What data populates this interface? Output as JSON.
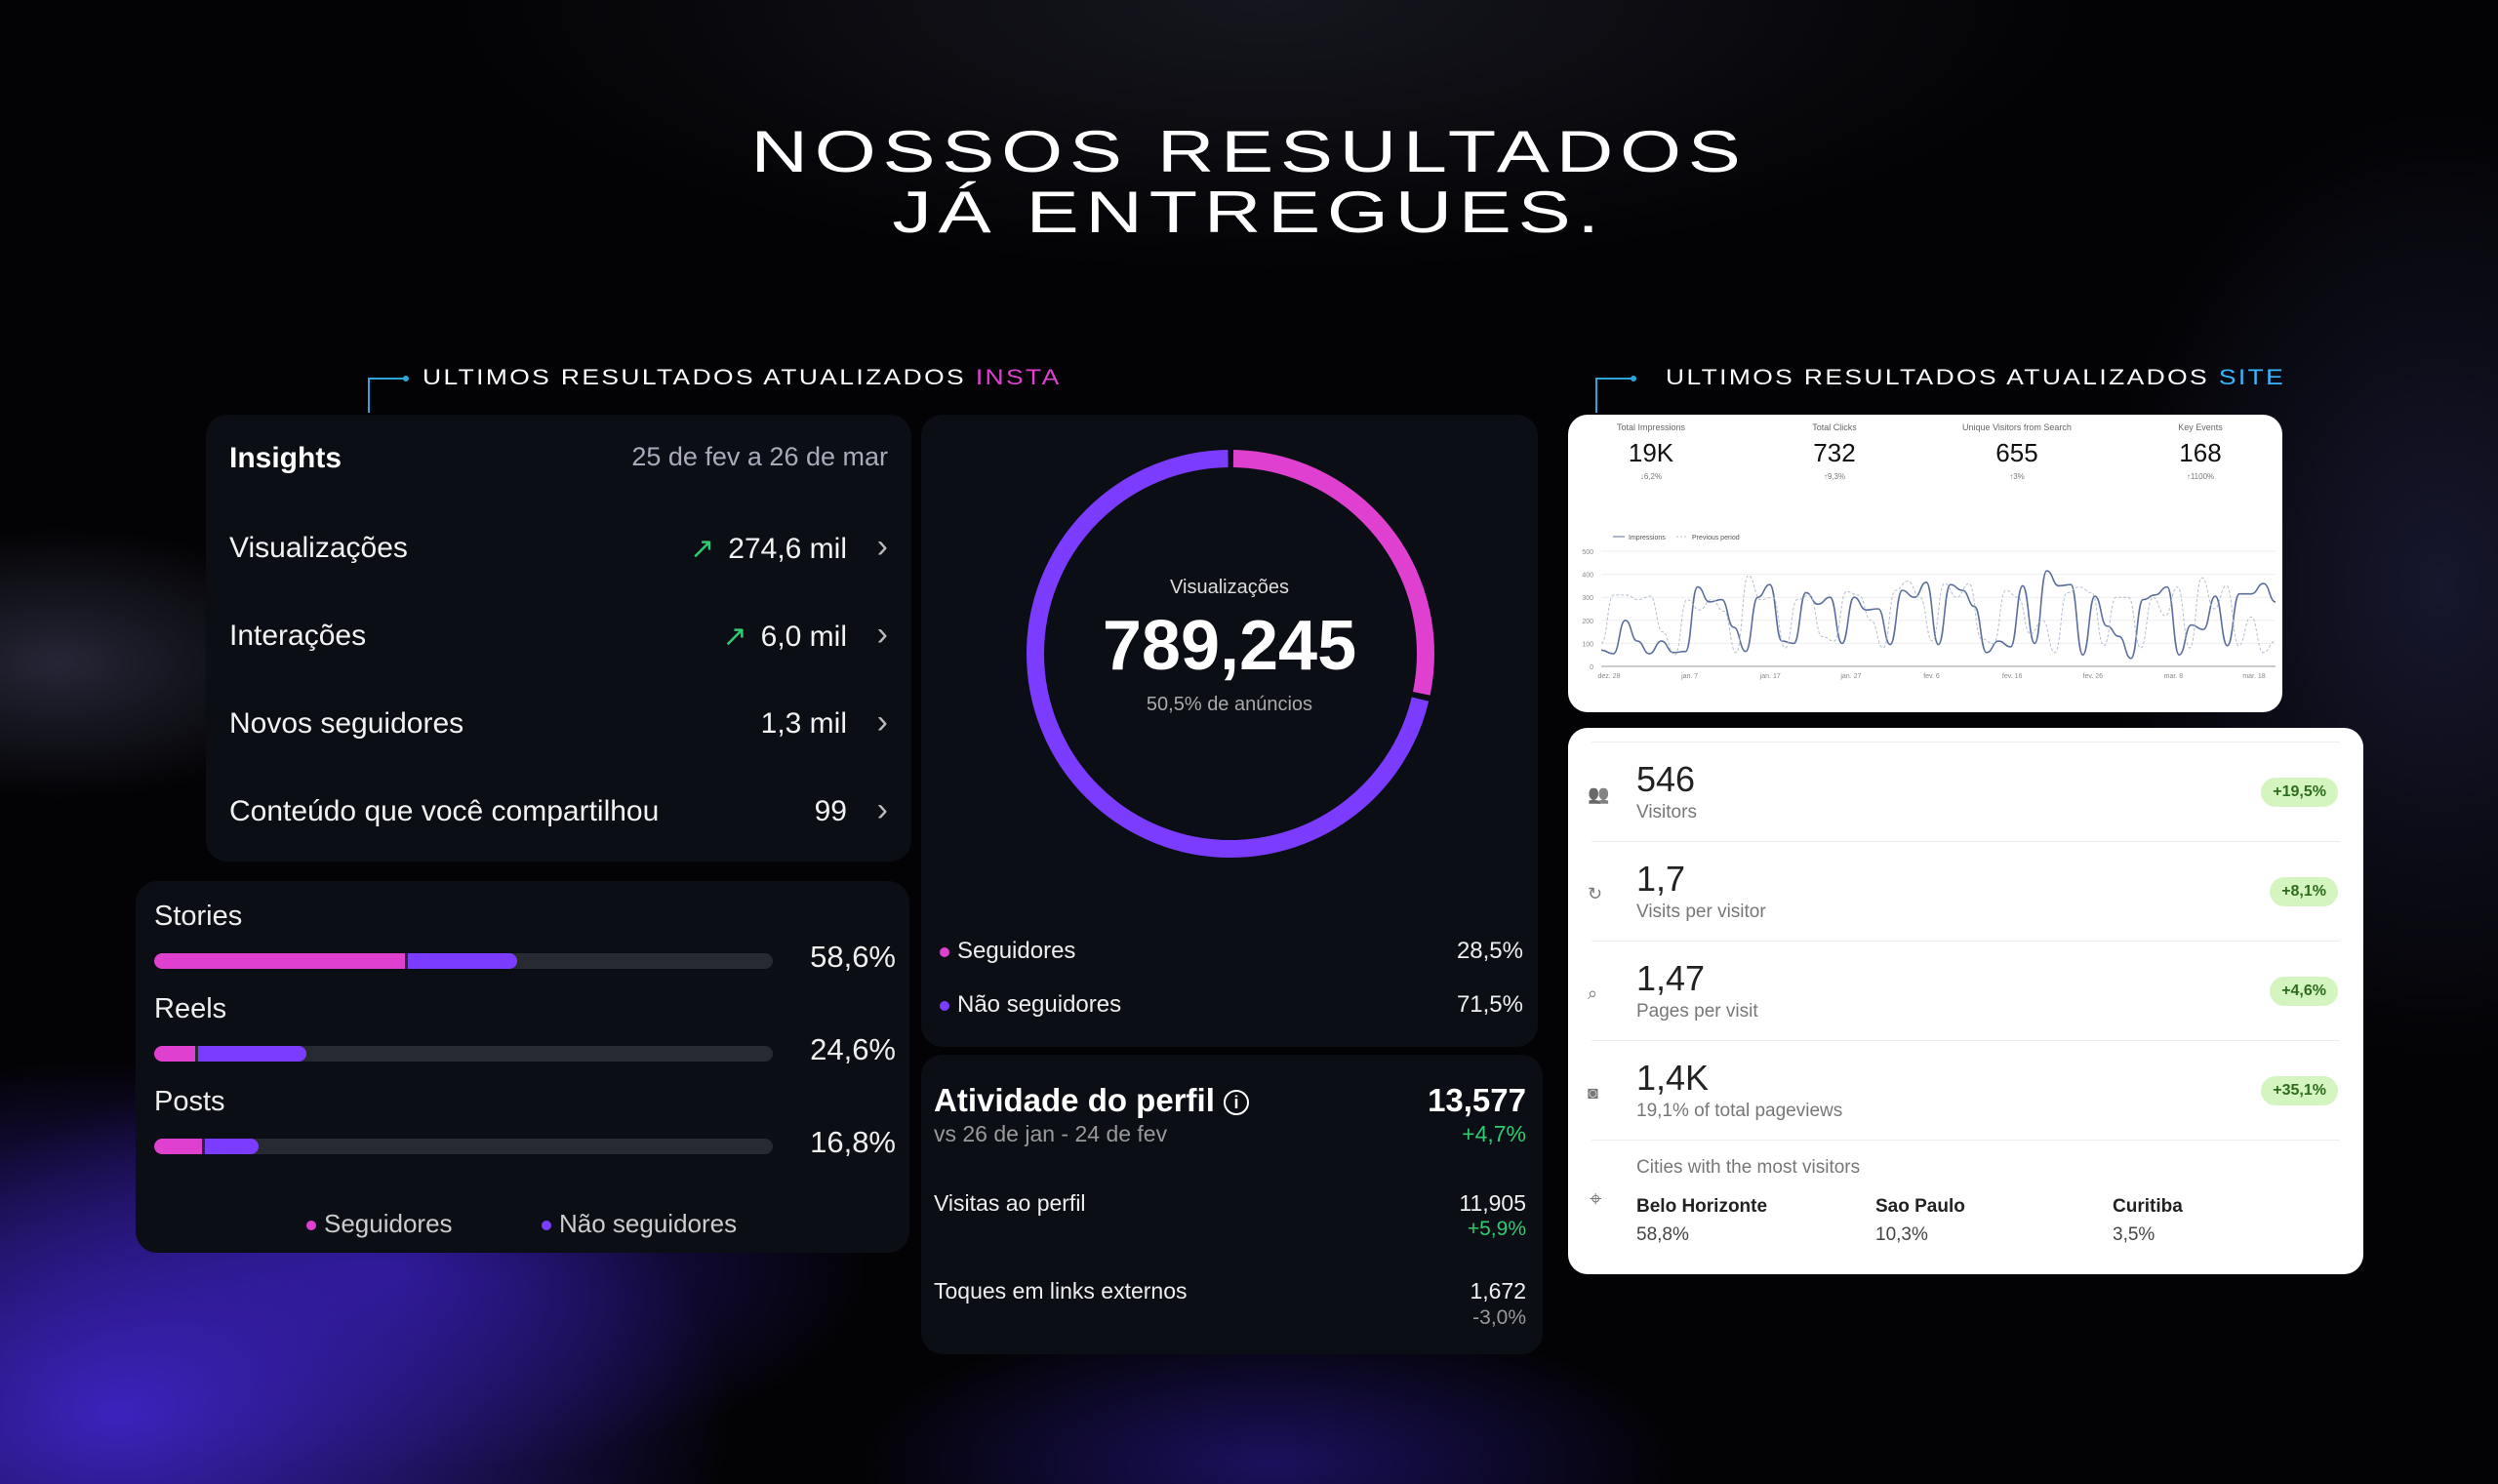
{
  "headline": {
    "line1": "NOSSOS RESULTADOS",
    "line2": "JÁ ENTREGUES."
  },
  "labels": {
    "insta_prefix": "ULTIMOS RESULTADOS ATUALIZADOS",
    "insta_highlight": "INSTA",
    "site_prefix": "ULTIMOS RESULTADOS ATUALIZADOS",
    "site_highlight": "SITE"
  },
  "colors": {
    "pink": "#e040d0",
    "purple": "#7c3cff",
    "positive": "#2ecc71",
    "accent": "#2aa7d8"
  },
  "insights": {
    "title": "Insights",
    "date_range": "25 de fev a 26 de mar",
    "rows": [
      {
        "label": "Visualizações",
        "value": "274,6 mil",
        "trend": "up"
      },
      {
        "label": "Interações",
        "value": "6,0 mil",
        "trend": "up"
      },
      {
        "label": "Novos seguidores",
        "value": "1,3 mil"
      },
      {
        "label": "Conteúdo que você compartilhou",
        "value": "99"
      }
    ]
  },
  "donut": {
    "label": "Visualizações",
    "value": "789,245",
    "sub": "50,5% de anúncios",
    "followers_fraction": 0.285,
    "legend": [
      {
        "label": "Seguidores",
        "value": "28,5%"
      },
      {
        "label": "Não seguidores",
        "value": "71,5%"
      }
    ]
  },
  "content_types": {
    "items": [
      {
        "label": "Stories",
        "value": "58,6%",
        "total": 58.6,
        "followers": 40.5
      },
      {
        "label": "Reels",
        "value": "24,6%",
        "total": 24.6,
        "followers": 6.7
      },
      {
        "label": "Posts",
        "value": "16,8%",
        "total": 16.8,
        "followers": 7.7
      }
    ],
    "legend": [
      "Seguidores",
      "Não seguidores"
    ]
  },
  "activity": {
    "title": "Atividade do perfil",
    "value": "13,577",
    "compare": "vs 26 de jan - 24 de fev",
    "change": "+4,7%",
    "rows": [
      {
        "label": "Visitas ao perfil",
        "value": "11,905",
        "change": "+5,9%"
      },
      {
        "label": "Toques em links externos",
        "value": "1,672",
        "change": "-3,0%"
      }
    ]
  },
  "search_console": {
    "metrics": [
      {
        "label": "Total Impressions",
        "value": "19K",
        "change": "↓6,2%"
      },
      {
        "label": "Total Clicks",
        "value": "732",
        "change": "↑9,3%"
      },
      {
        "label": "Unique Visitors from Search",
        "value": "655",
        "change": "↑3%"
      },
      {
        "label": "Key Events",
        "value": "168",
        "change": "↑1100%"
      }
    ]
  },
  "chart_data": {
    "type": "line",
    "ylim": [
      0,
      500
    ],
    "yticks": [
      0,
      100,
      200,
      300,
      400,
      500
    ],
    "xticks": [
      "dez. 28",
      "jan. 7",
      "jan. 17",
      "jan. 27",
      "fev. 6",
      "fev. 16",
      "fev. 26",
      "mar. 8",
      "mar. 18"
    ],
    "legend": "top-left",
    "grid": true,
    "series": [
      {
        "name": "Impressions",
        "style": "solid",
        "values": [
          70,
          55,
          200,
          110,
          55,
          110,
          60,
          65,
          345,
          280,
          290,
          170,
          65,
          300,
          355,
          110,
          100,
          320,
          270,
          300,
          100,
          300,
          245,
          250,
          95,
          330,
          300,
          365,
          95,
          355,
          330,
          260,
          60,
          110,
          85,
          350,
          100,
          415,
          350,
          355,
          50,
          305,
          175,
          130,
          35,
          290,
          310,
          345,
          50,
          180,
          160,
          305,
          90,
          315,
          315,
          360,
          280
        ]
      },
      {
        "name": "Previous period",
        "style": "dashed",
        "values": [
          100,
          310,
          310,
          290,
          305,
          150,
          50,
          290,
          245,
          290,
          240,
          60,
          395,
          290,
          300,
          80,
          290,
          310,
          130,
          110,
          325,
          310,
          200,
          80,
          330,
          370,
          300,
          110,
          360,
          300,
          360,
          120,
          100,
          330,
          300,
          140,
          200,
          60,
          320,
          345,
          320,
          90,
          300,
          300,
          80,
          300,
          220,
          345,
          80,
          385,
          250,
          350,
          90,
          215,
          60,
          110
        ]
      }
    ]
  },
  "site_metrics": {
    "rows": [
      {
        "icon": "users-icon",
        "value": "546",
        "label": "Visitors",
        "change": "+19,5%"
      },
      {
        "icon": "history-icon",
        "value": "1,7",
        "label": "Visits per visitor",
        "change": "+8,1%"
      },
      {
        "icon": "page-search-icon",
        "value": "1,47",
        "label": "Pages per visit",
        "change": "+4,6%"
      },
      {
        "icon": "pageview-icon",
        "value": "1,4K",
        "label": "19,1% of total pageviews",
        "change": "+35,1%"
      }
    ],
    "cities_title": "Cities with the most visitors",
    "cities": [
      {
        "name": "Belo Horizonte",
        "value": "58,8%"
      },
      {
        "name": "Sao Paulo",
        "value": "10,3%"
      },
      {
        "name": "Curitiba",
        "value": "3,5%"
      }
    ]
  }
}
